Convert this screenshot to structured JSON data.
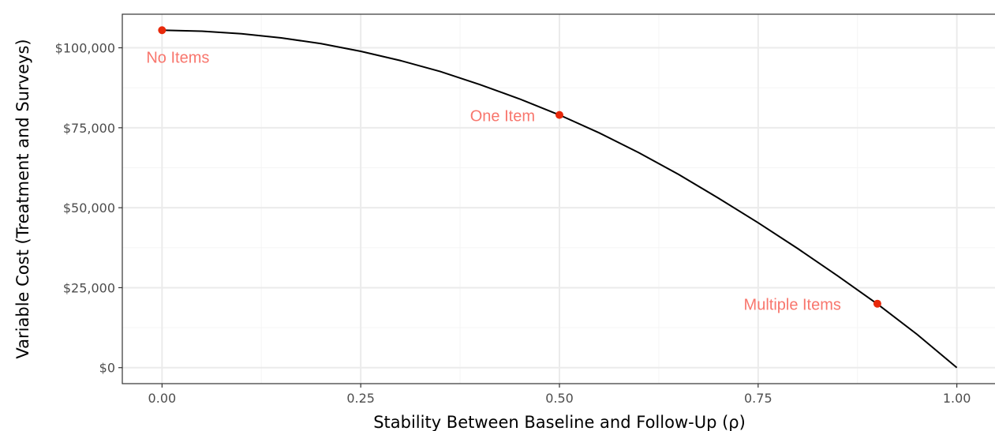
{
  "chart_data": {
    "type": "line",
    "title": "",
    "xlabel": "Stability Between Baseline and Follow-Up (ρ)",
    "ylabel": "Variable Cost (Treatment and Surveys)",
    "xlim": [
      -0.05,
      1.05
    ],
    "ylim": [
      -5000,
      110500
    ],
    "x_ticks": [
      0,
      0.25,
      0.5,
      0.75,
      1.0
    ],
    "x_tick_labels": [
      "0.00",
      "0.25",
      "0.50",
      "0.75",
      "1.00"
    ],
    "y_ticks": [
      0,
      25000,
      50000,
      75000,
      100000
    ],
    "y_tick_labels": [
      "$0",
      "$25,000",
      "$50,000",
      "$75,000",
      "$100,000"
    ],
    "grid": true,
    "series": [
      {
        "x": [
          0,
          0.05,
          0.1,
          0.15,
          0.2,
          0.25,
          0.3,
          0.35,
          0.4,
          0.45,
          0.5,
          0.55,
          0.6,
          0.65,
          0.7,
          0.75,
          0.8,
          0.85,
          0.9,
          0.95,
          1.0
        ],
        "y": [
          105500,
          105200,
          104400,
          103100,
          101300,
          98900,
          96000,
          92600,
          88500,
          84000,
          79000,
          73400,
          67200,
          60400,
          53000,
          45300,
          37200,
          28700,
          19900,
          10400,
          0
        ]
      }
    ],
    "points": [
      {
        "x": 0.0,
        "y": 105500,
        "label": "No Items"
      },
      {
        "x": 0.5,
        "y": 79000,
        "label": "One Item"
      },
      {
        "x": 0.9,
        "y": 20000,
        "label": "Multiple Items"
      }
    ],
    "colors": {
      "line": "#000000",
      "point": "#e8290b",
      "label": "#f8766d",
      "grid_major": "#ebebeb",
      "grid_minor": "#f5f5f5",
      "panel_border": "#333333"
    }
  }
}
